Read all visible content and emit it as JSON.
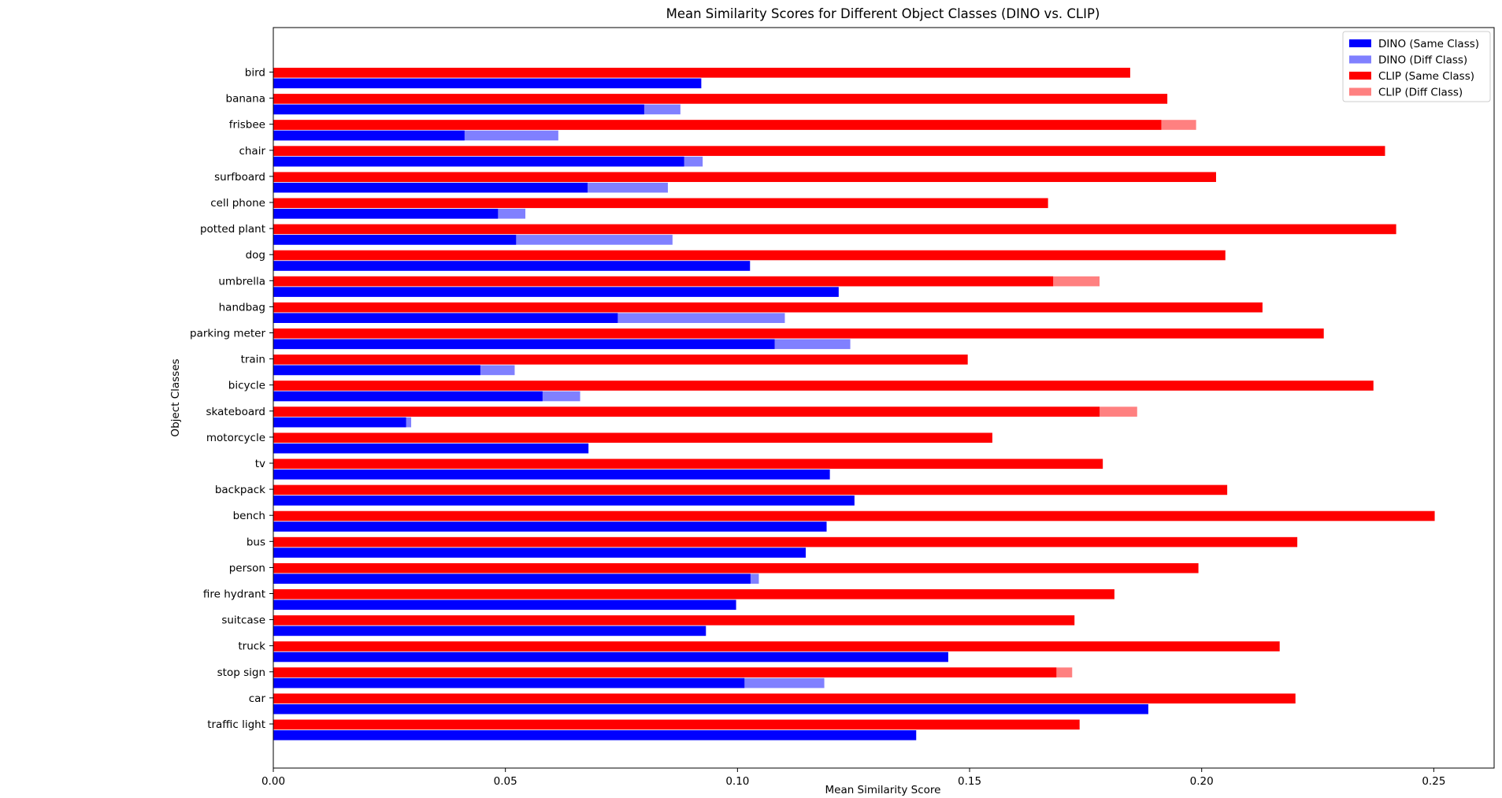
{
  "chart_data": {
    "type": "bar",
    "orientation": "horizontal",
    "title": "Mean Similarity Scores for Different Object Classes (DINO vs. CLIP)",
    "xlabel": "Mean Similarity Score",
    "ylabel": "Object Classes",
    "xlim": [
      0,
      0.263
    ],
    "xticks": [
      "0.00",
      "0.05",
      "0.10",
      "0.15",
      "0.20",
      "0.25"
    ],
    "xtick_values": [
      0,
      0.05,
      0.1,
      0.15,
      0.2,
      0.25
    ],
    "grid": false,
    "legend_position": "top-right",
    "categories": [
      "traffic light",
      "car",
      "stop sign",
      "truck",
      "suitcase",
      "fire hydrant",
      "person",
      "bus",
      "bench",
      "backpack",
      "tv",
      "motorcycle",
      "skateboard",
      "bicycle",
      "train",
      "parking meter",
      "handbag",
      "umbrella",
      "dog",
      "potted plant",
      "cell phone",
      "surfboard",
      "chair",
      "frisbee",
      "banana",
      "bird"
    ],
    "series": [
      {
        "name": "DINO (Same Class)",
        "color": "#0000ff",
        "values": [
          0.1385,
          0.1885,
          0.1015,
          0.1454,
          0.0932,
          0.0997,
          0.1028,
          0.1147,
          0.1192,
          0.1252,
          0.1199,
          0.0679,
          0.0286,
          0.058,
          0.0446,
          0.108,
          0.0742,
          0.1218,
          0.1027,
          0.0523,
          0.0484,
          0.0677,
          0.0885,
          0.0412,
          0.0799,
          0.0922
        ]
      },
      {
        "name": "DINO (Diff Class)",
        "color": "#8080ff",
        "values": [
          0.0,
          0.0,
          0.1187,
          0.0,
          0.0,
          0.0,
          0.1046,
          0.0,
          0.0,
          0.0,
          0.0,
          0.0,
          0.0297,
          0.0661,
          0.052,
          0.1243,
          0.1102,
          0.0,
          0.0,
          0.086,
          0.0543,
          0.085,
          0.0925,
          0.0614,
          0.0877,
          0.0
        ]
      },
      {
        "name": "CLIP (Same Class)",
        "color": "#ff0000",
        "values": [
          0.1737,
          0.2202,
          0.1687,
          0.2168,
          0.1726,
          0.1812,
          0.1993,
          0.2206,
          0.2502,
          0.2055,
          0.1787,
          0.1549,
          0.178,
          0.237,
          0.1496,
          0.2263,
          0.2131,
          0.168,
          0.2051,
          0.2419,
          0.1669,
          0.2031,
          0.2395,
          0.1913,
          0.1926,
          0.1846
        ]
      },
      {
        "name": "CLIP (Diff Class)",
        "color": "#ff8080",
        "values": [
          0.0,
          0.0,
          0.1721,
          0.0,
          0.0,
          0.0,
          0.0,
          0.0,
          0.0,
          0.0,
          0.0,
          0.0,
          0.1861,
          0.0,
          0.0,
          0.0,
          0.0,
          0.178,
          0.0,
          0.0,
          0.0,
          0.0,
          0.0,
          0.1988,
          0.0,
          0.0
        ]
      }
    ]
  }
}
